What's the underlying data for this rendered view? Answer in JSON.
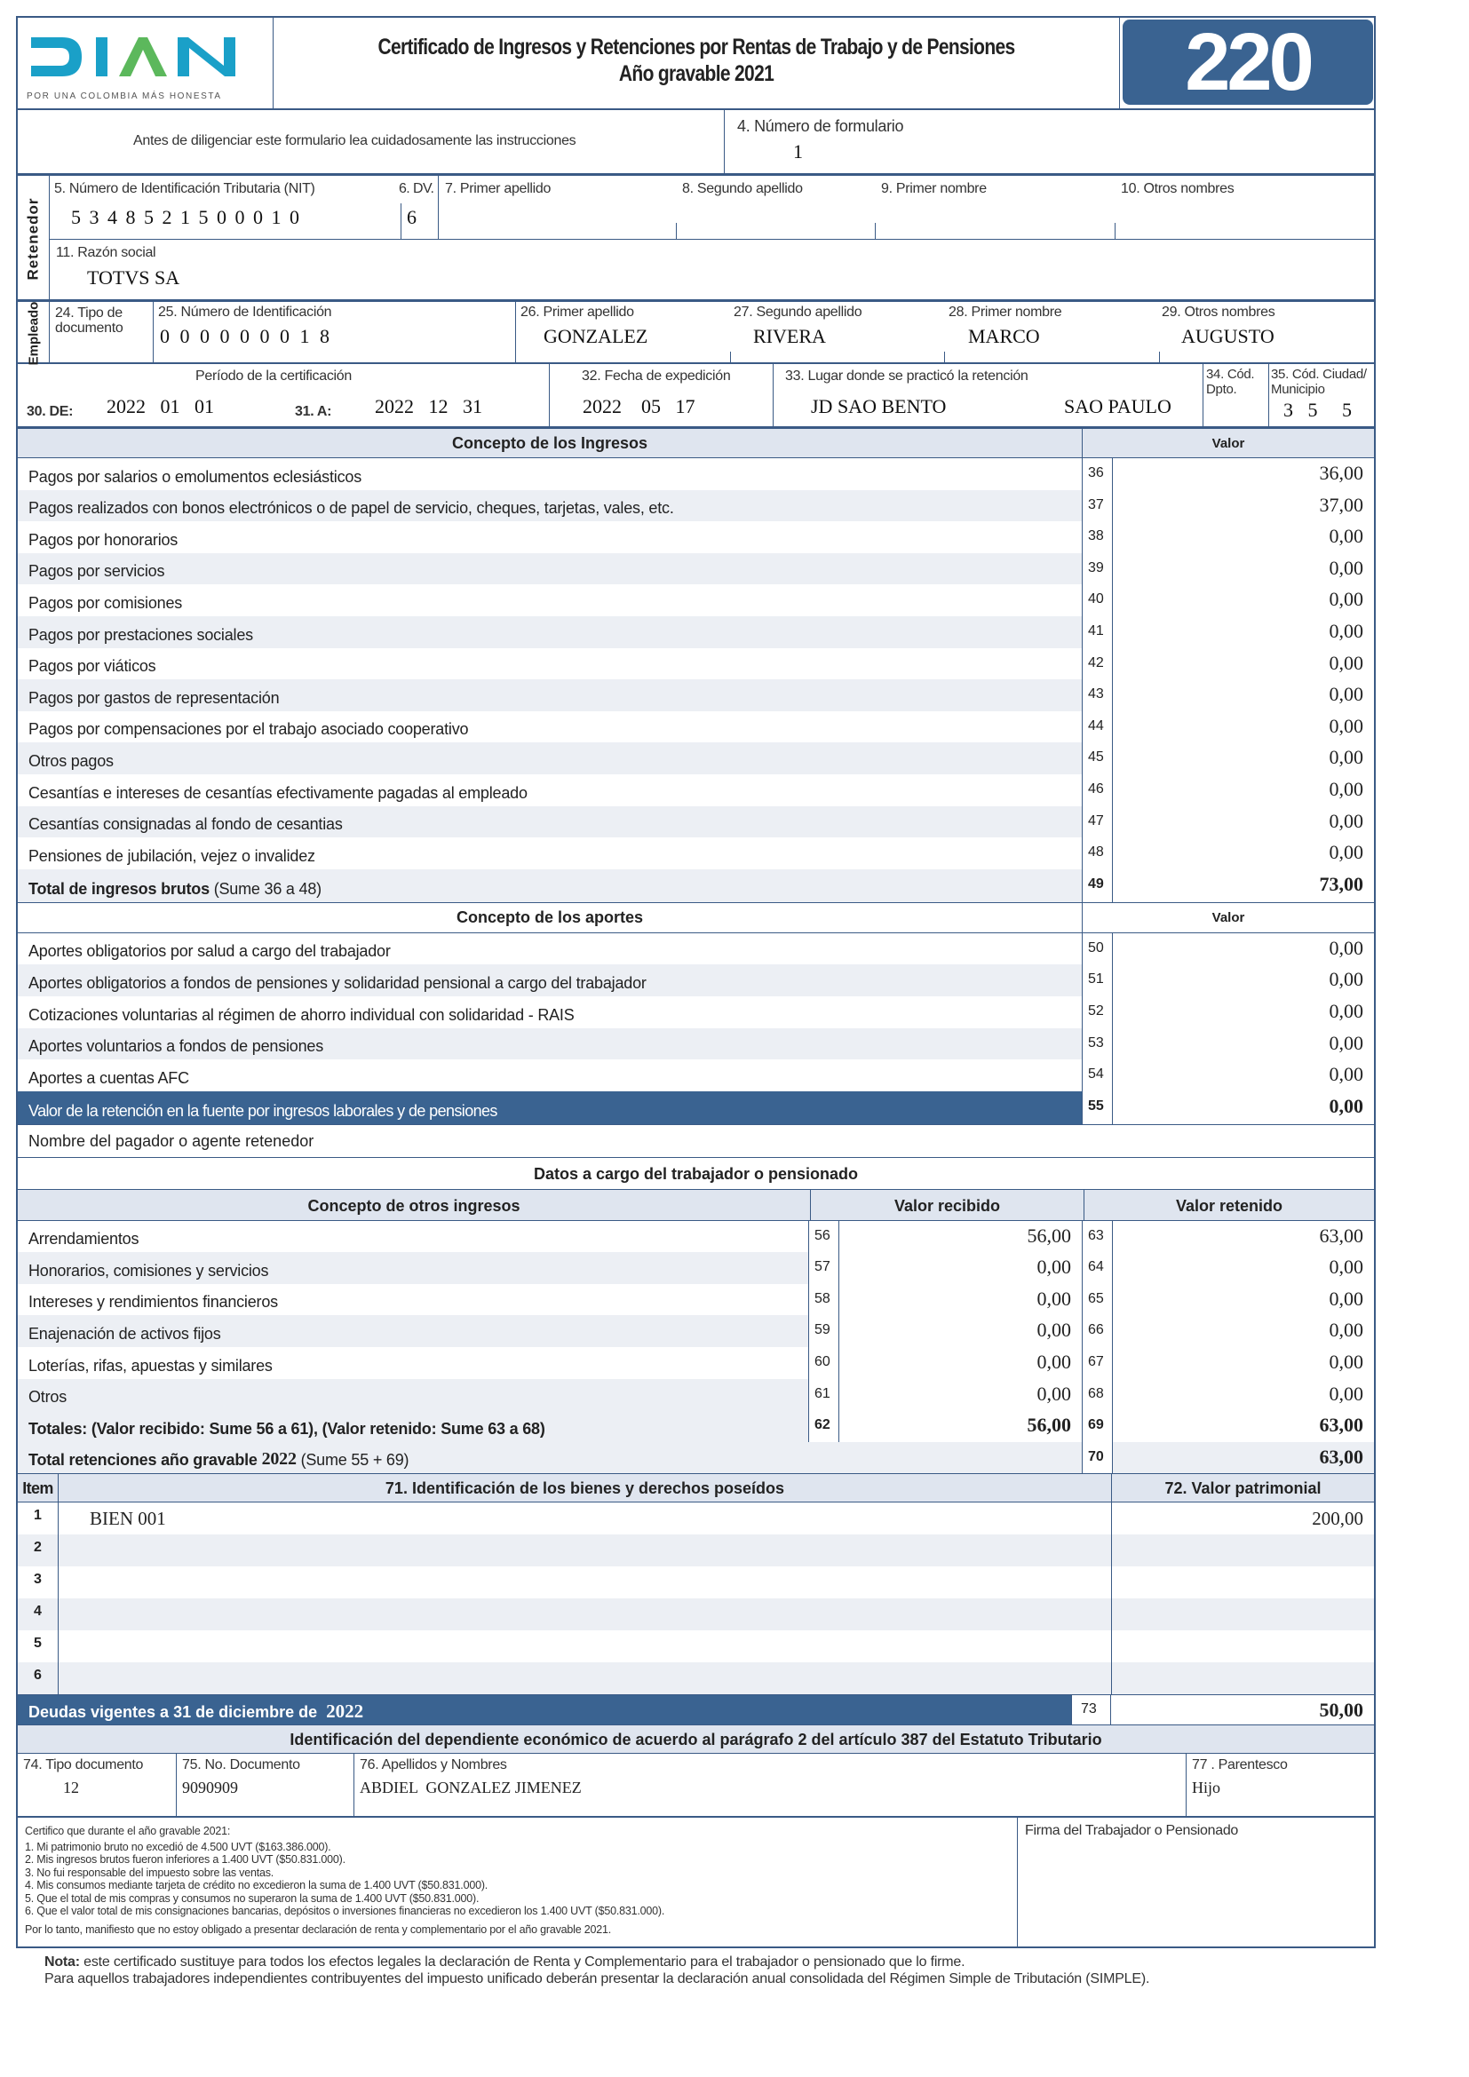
{
  "header": {
    "logo_text": "DIAN",
    "logo_tagline": "POR UNA COLOMBIA MÁS HONESTA",
    "title": "Certificado de Ingresos y Retenciones por Rentas de Trabajo y de Pensiones",
    "subtitle": "Año gravable 2021",
    "form_number": "220",
    "brand_color": "#3a6391"
  },
  "intro": {
    "instructions": "Antes de diligenciar este formulario lea cuidadosamente las instrucciones",
    "f4_label": "4. Número de formulario",
    "f4_value": "1"
  },
  "retenedor": {
    "section_label": "Retenedor",
    "f5_label": "5. Número de Identificación Tributaria (NIT)",
    "f5_value": "5 3 4 8 5 2 1 5 0 0 0 1 0",
    "f6_label": "6. DV.",
    "f6_value": "6",
    "f7_label": "7. Primer apellido",
    "f8_label": "8. Segundo apellido",
    "f9_label": "9. Primer nombre",
    "f10_label": "10. Otros nombres",
    "f11_label": "11. Razón social",
    "f11_value": "TOTVS SA"
  },
  "empleado": {
    "section_label": "Empleado",
    "f24_label": "24. Tipo de documento",
    "f25_label": "25. Número de Identificación",
    "f25_value": "0 0 0 0 0 0 0 1 8",
    "f26_label": "26. Primer apellido",
    "f26_value": "GONZALEZ",
    "f27_label": "27. Segundo apellido",
    "f27_value": "RIVERA",
    "f28_label": "28. Primer nombre",
    "f28_value": "MARCO",
    "f29_label": "29. Otros nombres",
    "f29_value": "AUGUSTO"
  },
  "periodo": {
    "label": "Período de la certificación",
    "f30_label": "30. DE:",
    "f30_value": "2022   01   01",
    "f31_label": "31. A:",
    "f31_value": "2022   12   31",
    "f32_label": "32. Fecha de expedición",
    "f32_value": "2022    05   17",
    "f33_label": "33. Lugar donde se practicó la retención",
    "f33_value": "JD SAO BENTO",
    "f33_city": "SAO PAULO",
    "f34_label": "34. Cód. Dpto.",
    "f35_label": "35. Cód. Ciudad/ Municipio",
    "f35_value": "3   5     5"
  },
  "ingresos": {
    "header": "Concepto de los Ingresos",
    "value_header": "Valor",
    "rows": [
      {
        "c": "Pagos por salarios o emolumentos eclesiásticos",
        "n": "36",
        "v": "36,00"
      },
      {
        "c": "Pagos realizados con bonos electrónicos o de papel de servicio, cheques, tarjetas, vales, etc.",
        "n": "37",
        "v": "37,00"
      },
      {
        "c": "Pagos por honorarios",
        "n": "38",
        "v": "0,00"
      },
      {
        "c": "Pagos por servicios",
        "n": "39",
        "v": "0,00"
      },
      {
        "c": "Pagos por comisiones",
        "n": "40",
        "v": "0,00"
      },
      {
        "c": "Pagos por prestaciones sociales",
        "n": "41",
        "v": "0,00"
      },
      {
        "c": "Pagos por viáticos",
        "n": "42",
        "v": "0,00"
      },
      {
        "c": "Pagos por gastos de representación",
        "n": "43",
        "v": "0,00"
      },
      {
        "c": "Pagos por compensaciones por el trabajo asociado cooperativo",
        "n": "44",
        "v": "0,00"
      },
      {
        "c": "Otros pagos",
        "n": "45",
        "v": "0,00"
      },
      {
        "c": "Cesantías e intereses de cesantías efectivamente pagadas al empleado",
        "n": "46",
        "v": "0,00"
      },
      {
        "c": "Cesantías consignadas al fondo de cesantias",
        "n": "47",
        "v": "0,00"
      },
      {
        "c": "Pensiones de jubilación, vejez o invalidez",
        "n": "48",
        "v": "0,00"
      }
    ],
    "total_label": "Total de ingresos brutos",
    "total_note": " (Sume 36 a 48)",
    "total_code": "49",
    "total_value": "73,00"
  },
  "aportes": {
    "header": "Concepto de los aportes",
    "value_header": "Valor",
    "rows": [
      {
        "c": "Aportes obligatorios por salud a cargo del trabajador",
        "n": "50",
        "v": "0,00"
      },
      {
        "c": "Aportes obligatorios a fondos de pensiones y solidaridad pensional a cargo del trabajador",
        "n": "51",
        "v": "0,00"
      },
      {
        "c": "Cotizaciones voluntarias al régimen de ahorro individual con solidaridad - RAIS",
        "n": "52",
        "v": "0,00"
      },
      {
        "c": "Aportes voluntarios a fondos de pensiones",
        "n": "53",
        "v": "0,00"
      },
      {
        "c": "Aportes a cuentas AFC",
        "n": "54",
        "v": "0,00"
      }
    ],
    "retencion_label": "Valor de la retención en la fuente por ingresos laborales y de pensiones",
    "retencion_code": "55",
    "retencion_value": "0,00",
    "pagador_label": "Nombre del pagador o agente retenedor"
  },
  "otros": {
    "section": "Datos a cargo del trabajador o pensionado",
    "h_concepto": "Concepto de otros ingresos",
    "h_recibido": "Valor recibido",
    "h_retenido": "Valor retenido",
    "rows": [
      {
        "c": "Arrendamientos",
        "n1": "56",
        "v1": "56,00",
        "n2": "63",
        "v2": "63,00"
      },
      {
        "c": "Honorarios, comisiones y servicios",
        "n1": "57",
        "v1": "0,00",
        "n2": "64",
        "v2": "0,00"
      },
      {
        "c": "Intereses y rendimientos financieros",
        "n1": "58",
        "v1": "0,00",
        "n2": "65",
        "v2": "0,00"
      },
      {
        "c": "Enajenación de activos fijos",
        "n1": "59",
        "v1": "0,00",
        "n2": "66",
        "v2": "0,00"
      },
      {
        "c": "Loterías, rifas, apuestas y similares",
        "n1": "60",
        "v1": "0,00",
        "n2": "67",
        "v2": "0,00"
      },
      {
        "c": "Otros",
        "n1": "61",
        "v1": "0,00",
        "n2": "68",
        "v2": "0,00"
      }
    ],
    "totales_label": "Totales: (Valor recibido: Sume 56 a 61), (Valor retenido: Sume 63 a 68)",
    "totales_n1": "62",
    "totales_v1": "56,00",
    "totales_n2": "69",
    "totales_v2": "63,00",
    "total_ret_label": "Total retenciones año gravable",
    "total_ret_year": "2022",
    "total_ret_note": "(Sume 55 + 69)",
    "total_ret_code": "70",
    "total_ret_value": "63,00"
  },
  "bienes": {
    "h_item": "Item",
    "h_ident": "71. Identificación de los bienes y derechos poseídos",
    "h_valor": "72. Valor patrimonial",
    "rows": [
      {
        "i": "1",
        "d": "BIEN 001",
        "v": "200,00"
      },
      {
        "i": "2",
        "d": "",
        "v": ""
      },
      {
        "i": "3",
        "d": "",
        "v": ""
      },
      {
        "i": "4",
        "d": "",
        "v": ""
      },
      {
        "i": "5",
        "d": "",
        "v": ""
      },
      {
        "i": "6",
        "d": "",
        "v": ""
      }
    ],
    "deudas_label": "Deudas vigentes a 31 de diciembre de",
    "deudas_year": "2022",
    "deudas_code": "73",
    "deudas_value": "50,00"
  },
  "dependiente": {
    "header": "Identificación del dependiente económico de acuerdo al parágrafo 2 del artículo 387 del Estatuto Tributario",
    "f74_label": "74. Tipo documento",
    "f74_value": "12",
    "f75_label": "75. No. Documento",
    "f75_value": "9090909",
    "f76_label": "76. Apellidos y Nombres",
    "f76_value": "ABDIEL  GONZALEZ JIMENEZ",
    "f77_label": "77 . Parentesco",
    "f77_value": "Hijo"
  },
  "certifico": {
    "intro": "Certifico que durante el año gravable 2021:",
    "items": [
      "1.  Mi patrimonio bruto no excedió de 4.500 UVT ($163.386.000).",
      "2.  Mis ingresos brutos fueron inferiores a 1.400 UVT ($50.831.000).",
      "3.  No fui responsable del impuesto sobre las ventas.",
      "4.  Mis consumos mediante tarjeta de crédito no excedieron la suma de 1.400 UVT ($50.831.000).",
      "5.  Que el total de mis compras y consumos no superaron la suma de 1.400 UVT ($50.831.000).",
      "6.  Que el valor total de mis consignaciones bancarias, depósitos o inversiones financieras no excedieron los 1.400 UVT ($50.831.000)."
    ],
    "closing": "Por lo tanto, manifiesto que no estoy obligado a presentar declaración de renta y complementario por el año gravable 2021.",
    "firma_label": "Firma del Trabajador o Pensionado"
  },
  "nota": {
    "bold": "Nota:",
    "line1": " este certificado sustituye para todos los efectos legales la declaración de Renta y Complementario para el trabajador o pensionado que lo firme.",
    "line2": "Para aquellos trabajadores independientes contribuyentes del impuesto unificado deberán presentar la declaración anual consolidada del Régimen Simple de Tributación (SIMPLE)."
  }
}
